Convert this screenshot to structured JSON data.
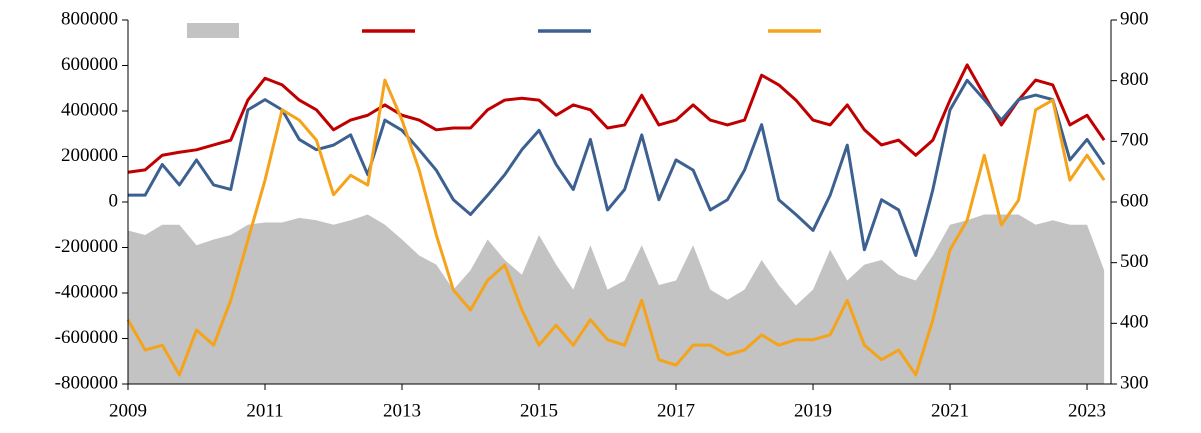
{
  "chart_data": {
    "type": "line",
    "x": [
      2009,
      2009.25,
      2009.5,
      2009.75,
      2010,
      2010.25,
      2010.5,
      2010.75,
      2011,
      2011.25,
      2011.5,
      2011.75,
      2012,
      2012.25,
      2012.5,
      2012.75,
      2013,
      2013.25,
      2013.5,
      2013.75,
      2014,
      2014.25,
      2014.5,
      2014.75,
      2015,
      2015.25,
      2015.5,
      2015.75,
      2016,
      2016.25,
      2016.5,
      2016.75,
      2017,
      2017.25,
      2017.5,
      2017.75,
      2018,
      2018.25,
      2018.5,
      2018.75,
      2019,
      2019.25,
      2019.5,
      2019.75,
      2020,
      2020.25,
      2020.5,
      2020.75,
      2021,
      2021.25,
      2021.5,
      2021.75,
      2022,
      2022.25,
      2022.5,
      2022.75,
      2023,
      2023.25
    ],
    "series": [
      {
        "kind": "area",
        "color": "#c3c3c3",
        "values": [
          -125000,
          -145000,
          -100000,
          -100000,
          -190000,
          -165000,
          -145000,
          -100000,
          -90000,
          -90000,
          -70000,
          -80000,
          -100000,
          -80000,
          -55000,
          -100000,
          -165000,
          -235000,
          -275000,
          -385000,
          -300000,
          -165000,
          -255000,
          -320000,
          -145000,
          -275000,
          -385000,
          -190000,
          -385000,
          -345000,
          -190000,
          -365000,
          -345000,
          -190000,
          -385000,
          -430000,
          -385000,
          -255000,
          -365000,
          -455000,
          -385000,
          -210000,
          -345000,
          -275000,
          -255000,
          -320000,
          -345000,
          -235000,
          -100000,
          -80000,
          -55000,
          -55000,
          -55000,
          -100000,
          -80000,
          -100000,
          -100000,
          -300000
        ]
      },
      {
        "kind": "line",
        "color": "#c00000",
        "axis": "y2",
        "values": [
          649,
          653,
          677,
          682,
          686,
          694,
          702,
          768,
          804,
          793,
          768,
          752,
          719,
          735,
          743,
          760,
          743,
          735,
          719,
          722,
          722,
          752,
          768,
          771,
          768,
          743,
          760,
          752,
          722,
          727,
          776,
          727,
          735,
          760,
          735,
          727,
          735,
          809,
          793,
          768,
          735,
          727,
          760,
          719,
          694,
          702,
          677,
          702,
          768,
          826,
          776,
          727,
          768,
          801,
          793,
          727,
          743,
          702
        ]
      },
      {
        "kind": "line",
        "color": "#3c6090",
        "values": [
          30000,
          30000,
          165000,
          75000,
          185000,
          75000,
          55000,
          405000,
          450000,
          405000,
          275000,
          230000,
          250000,
          295000,
          120000,
          360000,
          315000,
          230000,
          140000,
          10000,
          -55000,
          30000,
          120000,
          230000,
          315000,
          165000,
          55000,
          275000,
          -35000,
          55000,
          295000,
          10000,
          185000,
          140000,
          -35000,
          10000,
          140000,
          340000,
          10000,
          -55000,
          -125000,
          30000,
          250000,
          -210000,
          10000,
          -35000,
          -235000,
          55000,
          405000,
          535000,
          450000,
          360000,
          450000,
          470000,
          450000,
          185000,
          275000,
          165000
        ]
      },
      {
        "kind": "line",
        "color": "#f5a31a",
        "axis": "y2",
        "values": [
          406,
          356,
          364,
          315,
          389,
          364,
          438,
          537,
          636,
          752,
          735,
          702,
          612,
          644,
          628,
          801,
          735,
          653,
          546,
          455,
          422,
          471,
          496,
          422,
          364,
          397,
          364,
          406,
          373,
          364,
          438,
          340,
          331,
          364,
          364,
          348,
          356,
          381,
          364,
          373,
          373,
          381,
          438,
          364,
          340,
          356,
          315,
          406,
          521,
          570,
          677,
          562,
          603,
          752,
          768,
          636,
          677,
          636
        ]
      }
    ],
    "xlim": [
      2009,
      2023.35
    ],
    "xticks": [
      2009,
      2011,
      2013,
      2015,
      2017,
      2019,
      2021,
      2023
    ],
    "ylim": [
      -800000,
      800000
    ],
    "yticks": [
      -800000,
      -600000,
      -400000,
      -200000,
      0,
      200000,
      400000,
      600000,
      800000
    ],
    "y2lim": [
      300,
      900
    ],
    "y2ticks": [
      300,
      400,
      500,
      600,
      700,
      800,
      900
    ],
    "legend": "top",
    "grid": false
  }
}
